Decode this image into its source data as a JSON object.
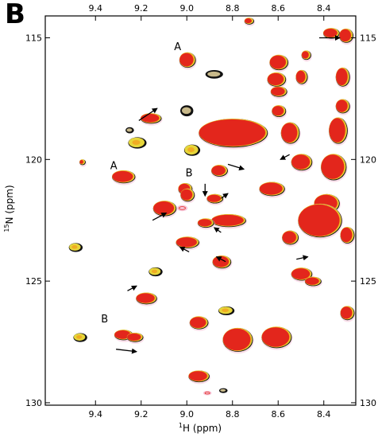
{
  "panel_label": "B",
  "colors": {
    "spectrum_red": "#e3261c",
    "spectrum_orange": "#f39a1a",
    "spectrum_yellow": "#e6d63a",
    "spectrum_black": "#111111",
    "spectrum_pink": "#f7c9dc",
    "spectrum_tan": "#c8b98a",
    "axis": "#000000"
  },
  "chart_data": {
    "type": "scatter",
    "description_kind": "2D 1H-15N HSQC NMR spectrum overlay",
    "xlabel_sup": "1",
    "xlabel_main": "H (ppm)",
    "ylabel_sup": "15",
    "ylabel_main": "N (ppm)",
    "xlim": [
      9.62,
      8.26
    ],
    "ylim": [
      114.1,
      130.1
    ],
    "x_reversed": true,
    "y_reversed": true,
    "x_ticks": [
      {
        "value": 9.4,
        "label": "9.4"
      },
      {
        "value": 9.2,
        "label": "9.2"
      },
      {
        "value": 9.0,
        "label": "9.0"
      },
      {
        "value": 8.8,
        "label": "8.8"
      },
      {
        "value": 8.6,
        "label": "8.6"
      },
      {
        "value": 8.4,
        "label": "8.4"
      }
    ],
    "y_ticks": [
      {
        "value": 115,
        "label": "115"
      },
      {
        "value": 120,
        "label": "120"
      },
      {
        "value": 125,
        "label": "125"
      },
      {
        "value": 130,
        "label": "130"
      }
    ],
    "annotations": [
      {
        "text": "A",
        "x": 9.04,
        "y": 115.5
      },
      {
        "text": "A",
        "x": 9.32,
        "y": 120.4
      },
      {
        "text": "B",
        "x": 8.99,
        "y": 120.7
      },
      {
        "text": "B",
        "x": 9.36,
        "y": 126.7
      }
    ],
    "arrows": [
      {
        "x1": 9.21,
        "y1": 118.4,
        "x2": 9.13,
        "y2": 117.9
      },
      {
        "x1": 8.42,
        "y1": 115.0,
        "x2": 8.33,
        "y2": 115.0
      },
      {
        "x1": 8.92,
        "y1": 121.0,
        "x2": 8.92,
        "y2": 121.5
      },
      {
        "x1": 8.82,
        "y1": 120.2,
        "x2": 8.75,
        "y2": 120.4
      },
      {
        "x1": 8.85,
        "y1": 121.6,
        "x2": 8.82,
        "y2": 121.4
      },
      {
        "x1": 8.55,
        "y1": 119.8,
        "x2": 8.59,
        "y2": 120.0
      },
      {
        "x1": 9.15,
        "y1": 122.5,
        "x2": 9.09,
        "y2": 122.2
      },
      {
        "x1": 8.85,
        "y1": 123.0,
        "x2": 8.88,
        "y2": 122.8
      },
      {
        "x1": 8.99,
        "y1": 123.8,
        "x2": 9.03,
        "y2": 123.6
      },
      {
        "x1": 8.83,
        "y1": 124.2,
        "x2": 8.87,
        "y2": 124.0
      },
      {
        "x1": 8.52,
        "y1": 124.1,
        "x2": 8.47,
        "y2": 124.0
      },
      {
        "x1": 9.26,
        "y1": 125.4,
        "x2": 9.22,
        "y2": 125.2
      },
      {
        "x1": 9.31,
        "y1": 127.8,
        "x2": 9.22,
        "y2": 127.9
      }
    ],
    "peaks": [
      {
        "x": 8.73,
        "y": 114.3,
        "w": 0.03,
        "h": 0.2,
        "kind": "r"
      },
      {
        "x": 8.37,
        "y": 114.8,
        "w": 0.06,
        "h": 0.35,
        "kind": "r"
      },
      {
        "x": 8.305,
        "y": 114.9,
        "w": 0.05,
        "h": 0.5,
        "kind": "r"
      },
      {
        "x": 9.0,
        "y": 115.9,
        "w": 0.06,
        "h": 0.55,
        "kind": "r"
      },
      {
        "x": 8.6,
        "y": 116.0,
        "w": 0.07,
        "h": 0.55,
        "kind": "r"
      },
      {
        "x": 8.61,
        "y": 116.7,
        "w": 0.07,
        "h": 0.5,
        "kind": "r"
      },
      {
        "x": 8.6,
        "y": 117.2,
        "w": 0.06,
        "h": 0.35,
        "kind": "r"
      },
      {
        "x": 8.48,
        "y": 115.7,
        "w": 0.03,
        "h": 0.3,
        "kind": "r"
      },
      {
        "x": 8.5,
        "y": 116.6,
        "w": 0.04,
        "h": 0.5,
        "kind": "r"
      },
      {
        "x": 8.32,
        "y": 116.6,
        "w": 0.05,
        "h": 0.7,
        "kind": "r"
      },
      {
        "x": 8.32,
        "y": 117.8,
        "w": 0.05,
        "h": 0.5,
        "kind": "r"
      },
      {
        "x": 8.88,
        "y": 116.5,
        "w": 0.07,
        "h": 0.3,
        "kind": "k"
      },
      {
        "x": 9.0,
        "y": 118.0,
        "w": 0.05,
        "h": 0.4,
        "kind": "k"
      },
      {
        "x": 8.6,
        "y": 118.0,
        "w": 0.05,
        "h": 0.4,
        "kind": "r"
      },
      {
        "x": 9.16,
        "y": 118.3,
        "w": 0.08,
        "h": 0.35,
        "kind": "r"
      },
      {
        "x": 9.25,
        "y": 118.8,
        "w": 0.03,
        "h": 0.2,
        "kind": "k"
      },
      {
        "x": 8.8,
        "y": 118.9,
        "w": 0.29,
        "h": 1.1,
        "kind": "r"
      },
      {
        "x": 8.55,
        "y": 118.9,
        "w": 0.07,
        "h": 0.8,
        "kind": "r"
      },
      {
        "x": 8.34,
        "y": 118.8,
        "w": 0.07,
        "h": 1.0,
        "kind": "r"
      },
      {
        "x": 9.22,
        "y": 119.3,
        "w": 0.07,
        "h": 0.4,
        "kind": "y"
      },
      {
        "x": 8.98,
        "y": 119.6,
        "w": 0.06,
        "h": 0.4,
        "kind": "y"
      },
      {
        "x": 8.5,
        "y": 120.1,
        "w": 0.08,
        "h": 0.6,
        "kind": "r"
      },
      {
        "x": 8.36,
        "y": 120.3,
        "w": 0.1,
        "h": 1.0,
        "kind": "r"
      },
      {
        "x": 9.46,
        "y": 120.1,
        "w": 0.015,
        "h": 0.15,
        "kind": "r"
      },
      {
        "x": 8.86,
        "y": 120.45,
        "w": 0.06,
        "h": 0.4,
        "kind": "r"
      },
      {
        "x": 9.28,
        "y": 120.7,
        "w": 0.09,
        "h": 0.45,
        "kind": "r"
      },
      {
        "x": 9.01,
        "y": 121.2,
        "w": 0.05,
        "h": 0.4,
        "kind": "r"
      },
      {
        "x": 9.0,
        "y": 121.45,
        "w": 0.05,
        "h": 0.45,
        "kind": "r"
      },
      {
        "x": 8.63,
        "y": 121.2,
        "w": 0.1,
        "h": 0.5,
        "kind": "r"
      },
      {
        "x": 8.39,
        "y": 121.8,
        "w": 0.1,
        "h": 0.7,
        "kind": "r"
      },
      {
        "x": 8.88,
        "y": 121.6,
        "w": 0.06,
        "h": 0.3,
        "kind": "r"
      },
      {
        "x": 9.1,
        "y": 122.0,
        "w": 0.09,
        "h": 0.55,
        "kind": "r"
      },
      {
        "x": 9.02,
        "y": 122.0,
        "w": 0.04,
        "h": 0.2,
        "kind": "p"
      },
      {
        "x": 8.82,
        "y": 122.5,
        "w": 0.14,
        "h": 0.45,
        "kind": "r"
      },
      {
        "x": 8.92,
        "y": 122.6,
        "w": 0.06,
        "h": 0.3,
        "kind": "r"
      },
      {
        "x": 8.42,
        "y": 122.5,
        "w": 0.18,
        "h": 1.3,
        "kind": "r"
      },
      {
        "x": 8.55,
        "y": 123.2,
        "w": 0.06,
        "h": 0.5,
        "kind": "r"
      },
      {
        "x": 8.3,
        "y": 123.1,
        "w": 0.05,
        "h": 0.6,
        "kind": "r"
      },
      {
        "x": 9.49,
        "y": 123.6,
        "w": 0.05,
        "h": 0.3,
        "kind": "y"
      },
      {
        "x": 9.0,
        "y": 123.4,
        "w": 0.09,
        "h": 0.4,
        "kind": "r"
      },
      {
        "x": 8.85,
        "y": 124.2,
        "w": 0.07,
        "h": 0.45,
        "kind": "r"
      },
      {
        "x": 9.14,
        "y": 124.6,
        "w": 0.05,
        "h": 0.3,
        "kind": "y"
      },
      {
        "x": 8.5,
        "y": 124.7,
        "w": 0.08,
        "h": 0.45,
        "kind": "r"
      },
      {
        "x": 8.45,
        "y": 125.0,
        "w": 0.06,
        "h": 0.3,
        "kind": "r"
      },
      {
        "x": 9.18,
        "y": 125.7,
        "w": 0.08,
        "h": 0.4,
        "kind": "r"
      },
      {
        "x": 8.83,
        "y": 126.2,
        "w": 0.06,
        "h": 0.3,
        "kind": "y"
      },
      {
        "x": 8.3,
        "y": 126.3,
        "w": 0.05,
        "h": 0.5,
        "kind": "r"
      },
      {
        "x": 8.95,
        "y": 126.7,
        "w": 0.07,
        "h": 0.45,
        "kind": "r"
      },
      {
        "x": 8.78,
        "y": 127.4,
        "w": 0.12,
        "h": 0.9,
        "kind": "r"
      },
      {
        "x": 8.61,
        "y": 127.3,
        "w": 0.12,
        "h": 0.8,
        "kind": "r"
      },
      {
        "x": 9.47,
        "y": 127.3,
        "w": 0.05,
        "h": 0.3,
        "kind": "y"
      },
      {
        "x": 9.28,
        "y": 127.2,
        "w": 0.07,
        "h": 0.35,
        "kind": "r"
      },
      {
        "x": 9.23,
        "y": 127.3,
        "w": 0.06,
        "h": 0.3,
        "kind": "r"
      },
      {
        "x": 8.95,
        "y": 128.9,
        "w": 0.08,
        "h": 0.4,
        "kind": "r"
      },
      {
        "x": 8.84,
        "y": 129.5,
        "w": 0.03,
        "h": 0.15,
        "kind": "k"
      },
      {
        "x": 8.91,
        "y": 129.6,
        "w": 0.03,
        "h": 0.12,
        "kind": "p"
      }
    ]
  }
}
